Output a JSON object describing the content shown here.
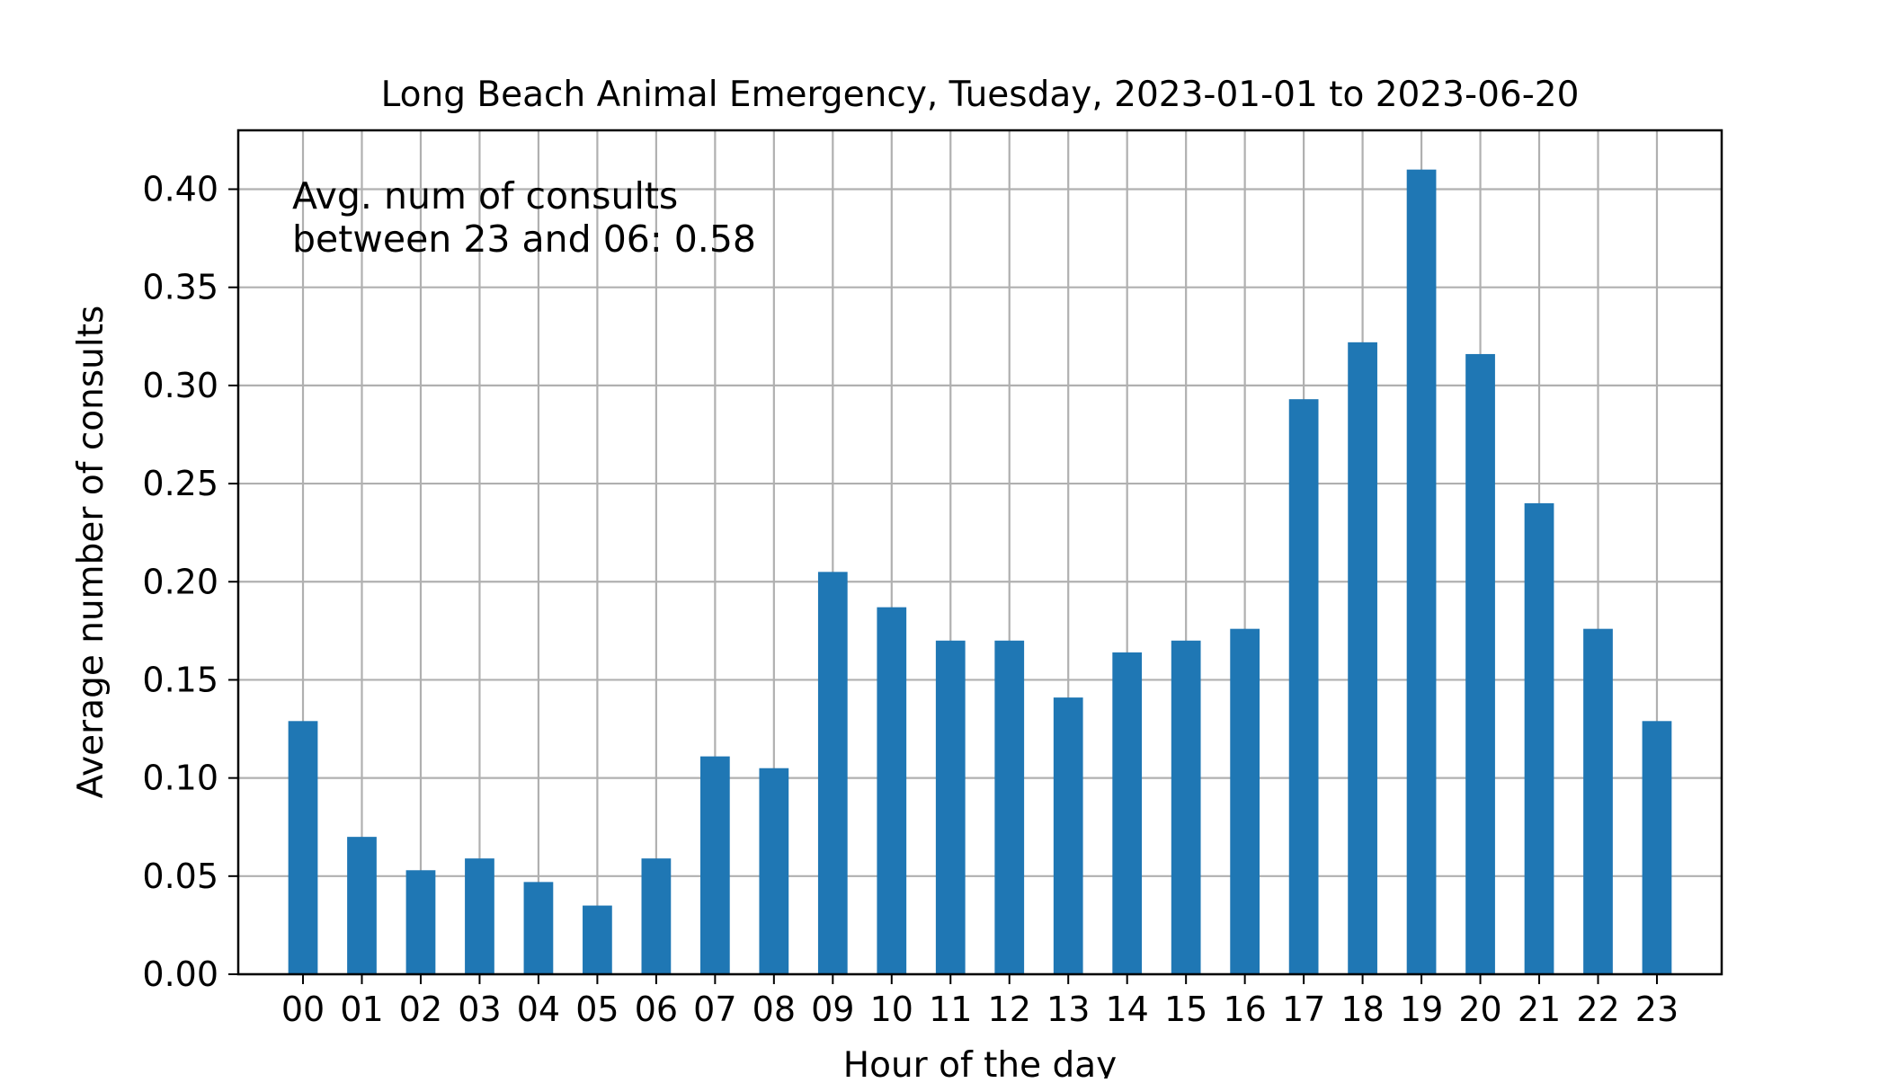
{
  "chart_data": {
    "type": "bar",
    "title": "Long Beach Animal Emergency, Tuesday, 2023-01-01 to 2023-06-20",
    "xlabel": "Hour of the day",
    "ylabel": "Average number of consults",
    "categories": [
      "00",
      "01",
      "02",
      "03",
      "04",
      "05",
      "06",
      "07",
      "08",
      "09",
      "10",
      "11",
      "12",
      "13",
      "14",
      "15",
      "16",
      "17",
      "18",
      "19",
      "20",
      "21",
      "22",
      "23"
    ],
    "values": [
      0.129,
      0.07,
      0.053,
      0.059,
      0.047,
      0.035,
      0.059,
      0.111,
      0.105,
      0.205,
      0.187,
      0.17,
      0.17,
      0.141,
      0.164,
      0.17,
      0.176,
      0.293,
      0.322,
      0.41,
      0.316,
      0.24,
      0.176,
      0.129
    ],
    "ylim": [
      0,
      0.43
    ],
    "yticks": [
      0.0,
      0.05,
      0.1,
      0.15,
      0.2,
      0.25,
      0.3,
      0.35,
      0.4
    ],
    "ytick_labels": [
      "0.00",
      "0.05",
      "0.10",
      "0.15",
      "0.20",
      "0.25",
      "0.30",
      "0.35",
      "0.40"
    ],
    "annotation": {
      "line1": "Avg. num of consults",
      "line2": "between 23 and 06: 0.58"
    },
    "bar_color": "#1f77b4",
    "grid_color": "#b0b0b0",
    "grid": true,
    "legend": "none"
  }
}
